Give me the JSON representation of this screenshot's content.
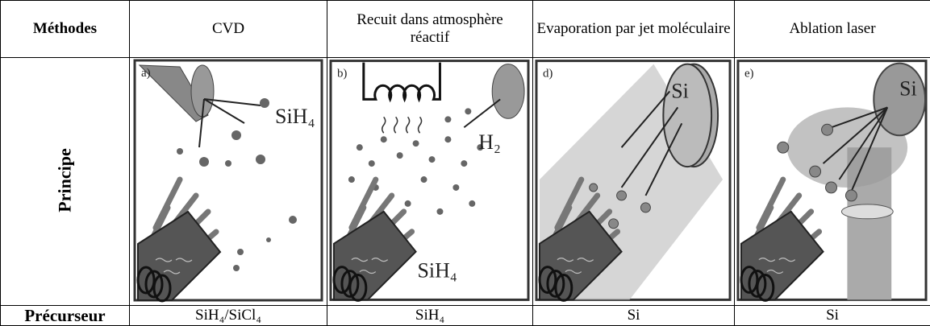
{
  "table": {
    "header": [
      "Méthodes",
      "CVD",
      "Recuit dans atmosphère réactif",
      "Evaporation par jet moléculaire",
      "Ablation laser"
    ],
    "principle": {
      "label": "Principe",
      "panels": [
        {
          "tag": "a)",
          "labels": [
            "SiH₄"
          ]
        },
        {
          "tag": "b)",
          "labels": [
            "H₂",
            "SiH₄"
          ]
        },
        {
          "tag": "d)",
          "labels": [
            "Si"
          ]
        },
        {
          "tag": "e)",
          "labels": [
            "Si"
          ]
        }
      ]
    },
    "precursor": {
      "label": "Précurseur",
      "cells": [
        "SiH₄/SiCl₄",
        "SiH₄",
        "Si",
        "Si"
      ]
    }
  }
}
